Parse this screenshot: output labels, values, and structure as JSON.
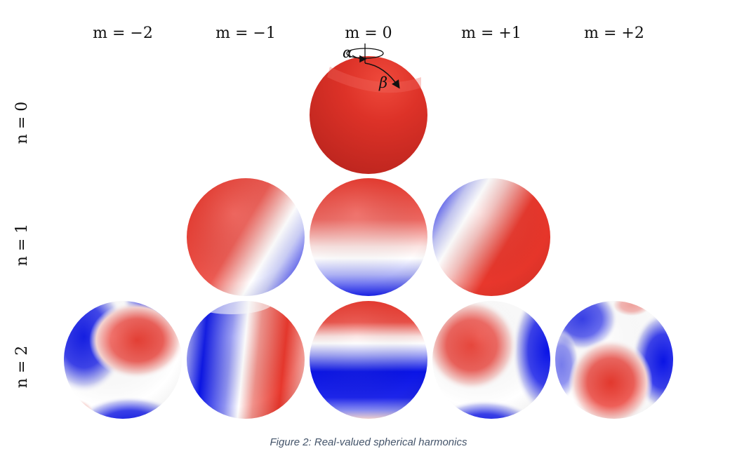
{
  "columns": [
    "m = −2",
    "m = −1",
    "m = 0",
    "m = +1",
    "m = +2"
  ],
  "rows": [
    "n = 0",
    "n = 1",
    "n = 2"
  ],
  "angle_labels": {
    "alpha": "α",
    "beta": "β"
  },
  "caption": "Figure 2: Real-valued spherical harmonics",
  "colors": {
    "positive": "#e8372c",
    "negative": "#0a14e6",
    "zero": "#ffffff",
    "deep_red": "#b8231c"
  },
  "spheres": [
    {
      "n": 0,
      "m": 0
    },
    {
      "n": 1,
      "m": -1
    },
    {
      "n": 1,
      "m": 0
    },
    {
      "n": 1,
      "m": 1
    },
    {
      "n": 2,
      "m": -2
    },
    {
      "n": 2,
      "m": -1
    },
    {
      "n": 2,
      "m": 0
    },
    {
      "n": 2,
      "m": 1
    },
    {
      "n": 2,
      "m": 2
    }
  ]
}
